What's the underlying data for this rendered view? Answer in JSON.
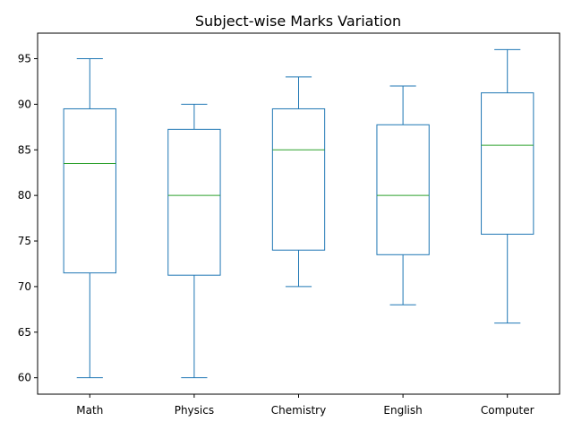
{
  "chart_data": {
    "type": "box",
    "title": "Subject-wise Marks Variation",
    "xlabel": "",
    "ylabel": "",
    "categories": [
      "Math",
      "Physics",
      "Chemistry",
      "English",
      "Computer"
    ],
    "boxes": [
      {
        "category": "Math",
        "whisker_low": 60,
        "q1": 71.5,
        "median": 83.5,
        "q3": 89.5,
        "whisker_high": 95
      },
      {
        "category": "Physics",
        "whisker_low": 60,
        "q1": 71.25,
        "median": 80,
        "q3": 87.25,
        "whisker_high": 90
      },
      {
        "category": "Chemistry",
        "whisker_low": 70,
        "q1": 74,
        "median": 85,
        "q3": 89.5,
        "whisker_high": 93
      },
      {
        "category": "English",
        "whisker_low": 68,
        "q1": 73.5,
        "median": 80,
        "q3": 87.75,
        "whisker_high": 92
      },
      {
        "category": "Computer",
        "whisker_low": 66,
        "q1": 75.75,
        "median": 85.5,
        "q3": 91.25,
        "whisker_high": 96
      }
    ],
    "y_ticks": [
      60,
      65,
      70,
      75,
      80,
      85,
      90,
      95
    ],
    "ylim": [
      58.2,
      97.8
    ],
    "grid": false,
    "legend": "none",
    "colors": {
      "box": "#1f77b4",
      "median": "#2ca02c",
      "axis": "#000000"
    }
  }
}
